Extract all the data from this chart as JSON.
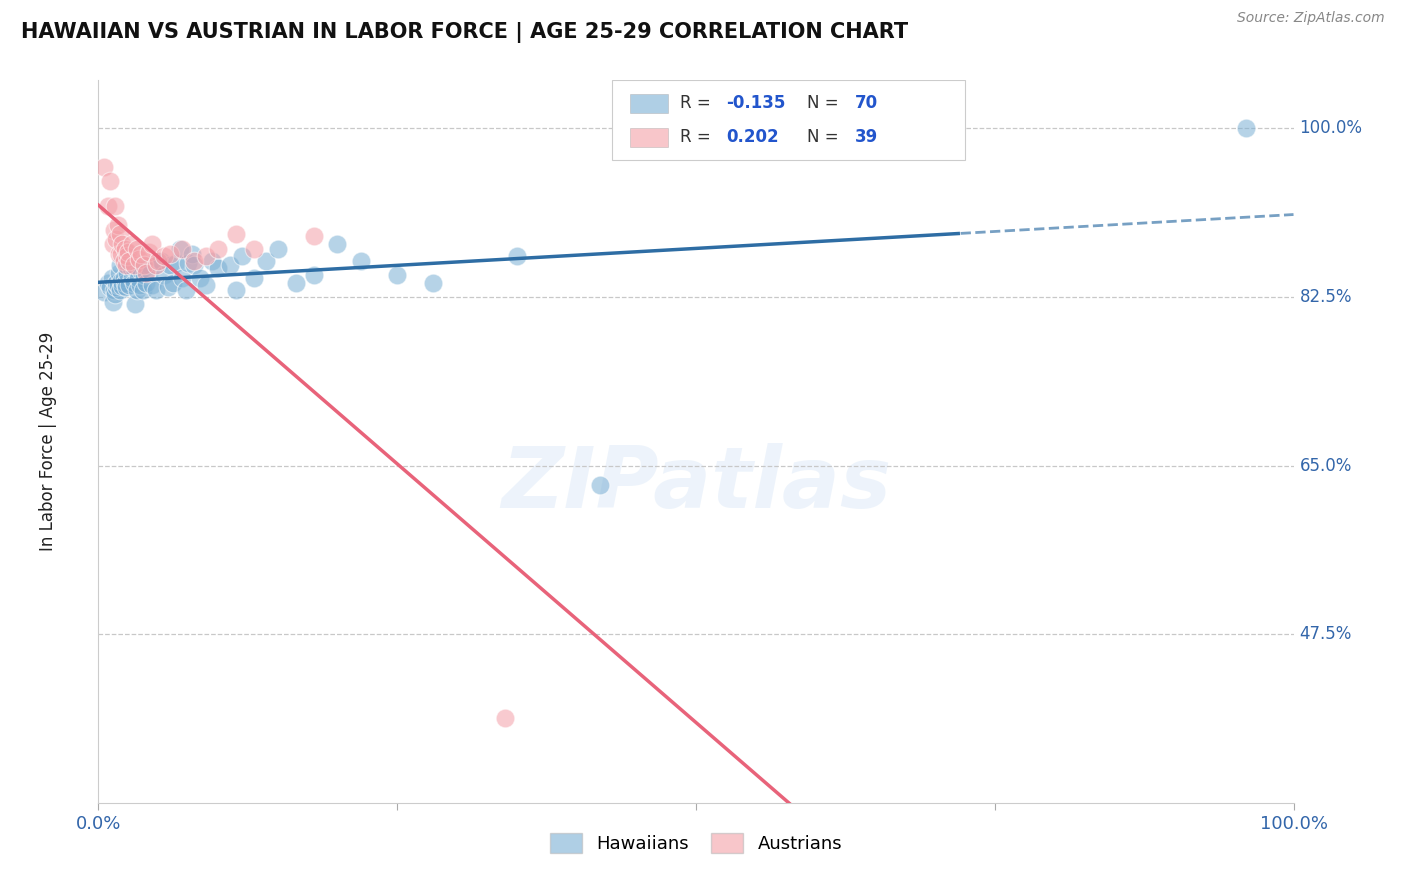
{
  "title": "HAWAIIAN VS AUSTRIAN IN LABOR FORCE | AGE 25-29 CORRELATION CHART",
  "source": "Source: ZipAtlas.com",
  "ylabel": "In Labor Force | Age 25-29",
  "xlim": [
    0.0,
    1.0
  ],
  "ylim": [
    0.3,
    1.05
  ],
  "yticks": [
    0.475,
    0.65,
    0.825,
    1.0
  ],
  "ytick_labels": [
    "47.5%",
    "65.0%",
    "82.5%",
    "100.0%"
  ],
  "r_hawaiian": -0.135,
  "n_hawaiian": 70,
  "r_austrian": 0.202,
  "n_austrian": 39,
  "hawaiian_color": "#7BAFD4",
  "austrian_color": "#F4A0A8",
  "trend_hawaiian_color": "#2E6DA4",
  "trend_austrian_color": "#E8637A",
  "background_color": "#FFFFFF",
  "watermark": "ZIPatlas",
  "hawaiian_x": [
    0.005,
    0.008,
    0.01,
    0.011,
    0.012,
    0.013,
    0.014,
    0.015,
    0.015,
    0.016,
    0.017,
    0.018,
    0.018,
    0.019,
    0.02,
    0.021,
    0.022,
    0.023,
    0.023,
    0.024,
    0.025,
    0.026,
    0.027,
    0.028,
    0.03,
    0.03,
    0.031,
    0.032,
    0.033,
    0.035,
    0.036,
    0.037,
    0.038,
    0.04,
    0.042,
    0.043,
    0.045,
    0.048,
    0.05,
    0.052,
    0.055,
    0.058,
    0.06,
    0.062,
    0.065,
    0.068,
    0.07,
    0.073,
    0.075,
    0.078,
    0.08,
    0.085,
    0.09,
    0.095,
    0.1,
    0.11,
    0.115,
    0.12,
    0.13,
    0.14,
    0.15,
    0.165,
    0.18,
    0.2,
    0.22,
    0.25,
    0.28,
    0.35,
    0.42,
    0.96
  ],
  "hawaiian_y": [
    0.83,
    0.84,
    0.835,
    0.845,
    0.82,
    0.832,
    0.828,
    0.835,
    0.84,
    0.838,
    0.85,
    0.832,
    0.858,
    0.842,
    0.836,
    0.845,
    0.84,
    0.835,
    0.862,
    0.85,
    0.87,
    0.838,
    0.855,
    0.845,
    0.84,
    0.855,
    0.818,
    0.832,
    0.845,
    0.838,
    0.852,
    0.832,
    0.848,
    0.84,
    0.858,
    0.852,
    0.838,
    0.832,
    0.86,
    0.862,
    0.848,
    0.835,
    0.858,
    0.84,
    0.86,
    0.875,
    0.845,
    0.832,
    0.86,
    0.87,
    0.858,
    0.845,
    0.838,
    0.862,
    0.855,
    0.858,
    0.832,
    0.868,
    0.845,
    0.862,
    0.875,
    0.84,
    0.848,
    0.88,
    0.862,
    0.848,
    0.84,
    0.868,
    0.63,
    1.0
  ],
  "austrian_x": [
    0.005,
    0.008,
    0.01,
    0.012,
    0.013,
    0.014,
    0.015,
    0.016,
    0.017,
    0.018,
    0.019,
    0.02,
    0.021,
    0.022,
    0.023,
    0.024,
    0.025,
    0.026,
    0.028,
    0.03,
    0.032,
    0.034,
    0.036,
    0.038,
    0.04,
    0.042,
    0.045,
    0.048,
    0.05,
    0.055,
    0.06,
    0.07,
    0.08,
    0.09,
    0.1,
    0.115,
    0.13,
    0.18,
    0.34
  ],
  "austrian_y": [
    0.96,
    0.92,
    0.945,
    0.88,
    0.895,
    0.92,
    0.885,
    0.9,
    0.87,
    0.89,
    0.87,
    0.88,
    0.862,
    0.875,
    0.858,
    0.868,
    0.872,
    0.862,
    0.88,
    0.858,
    0.875,
    0.865,
    0.87,
    0.858,
    0.85,
    0.872,
    0.88,
    0.858,
    0.862,
    0.868,
    0.87,
    0.875,
    0.862,
    0.868,
    0.875,
    0.89,
    0.875,
    0.888,
    0.388
  ]
}
